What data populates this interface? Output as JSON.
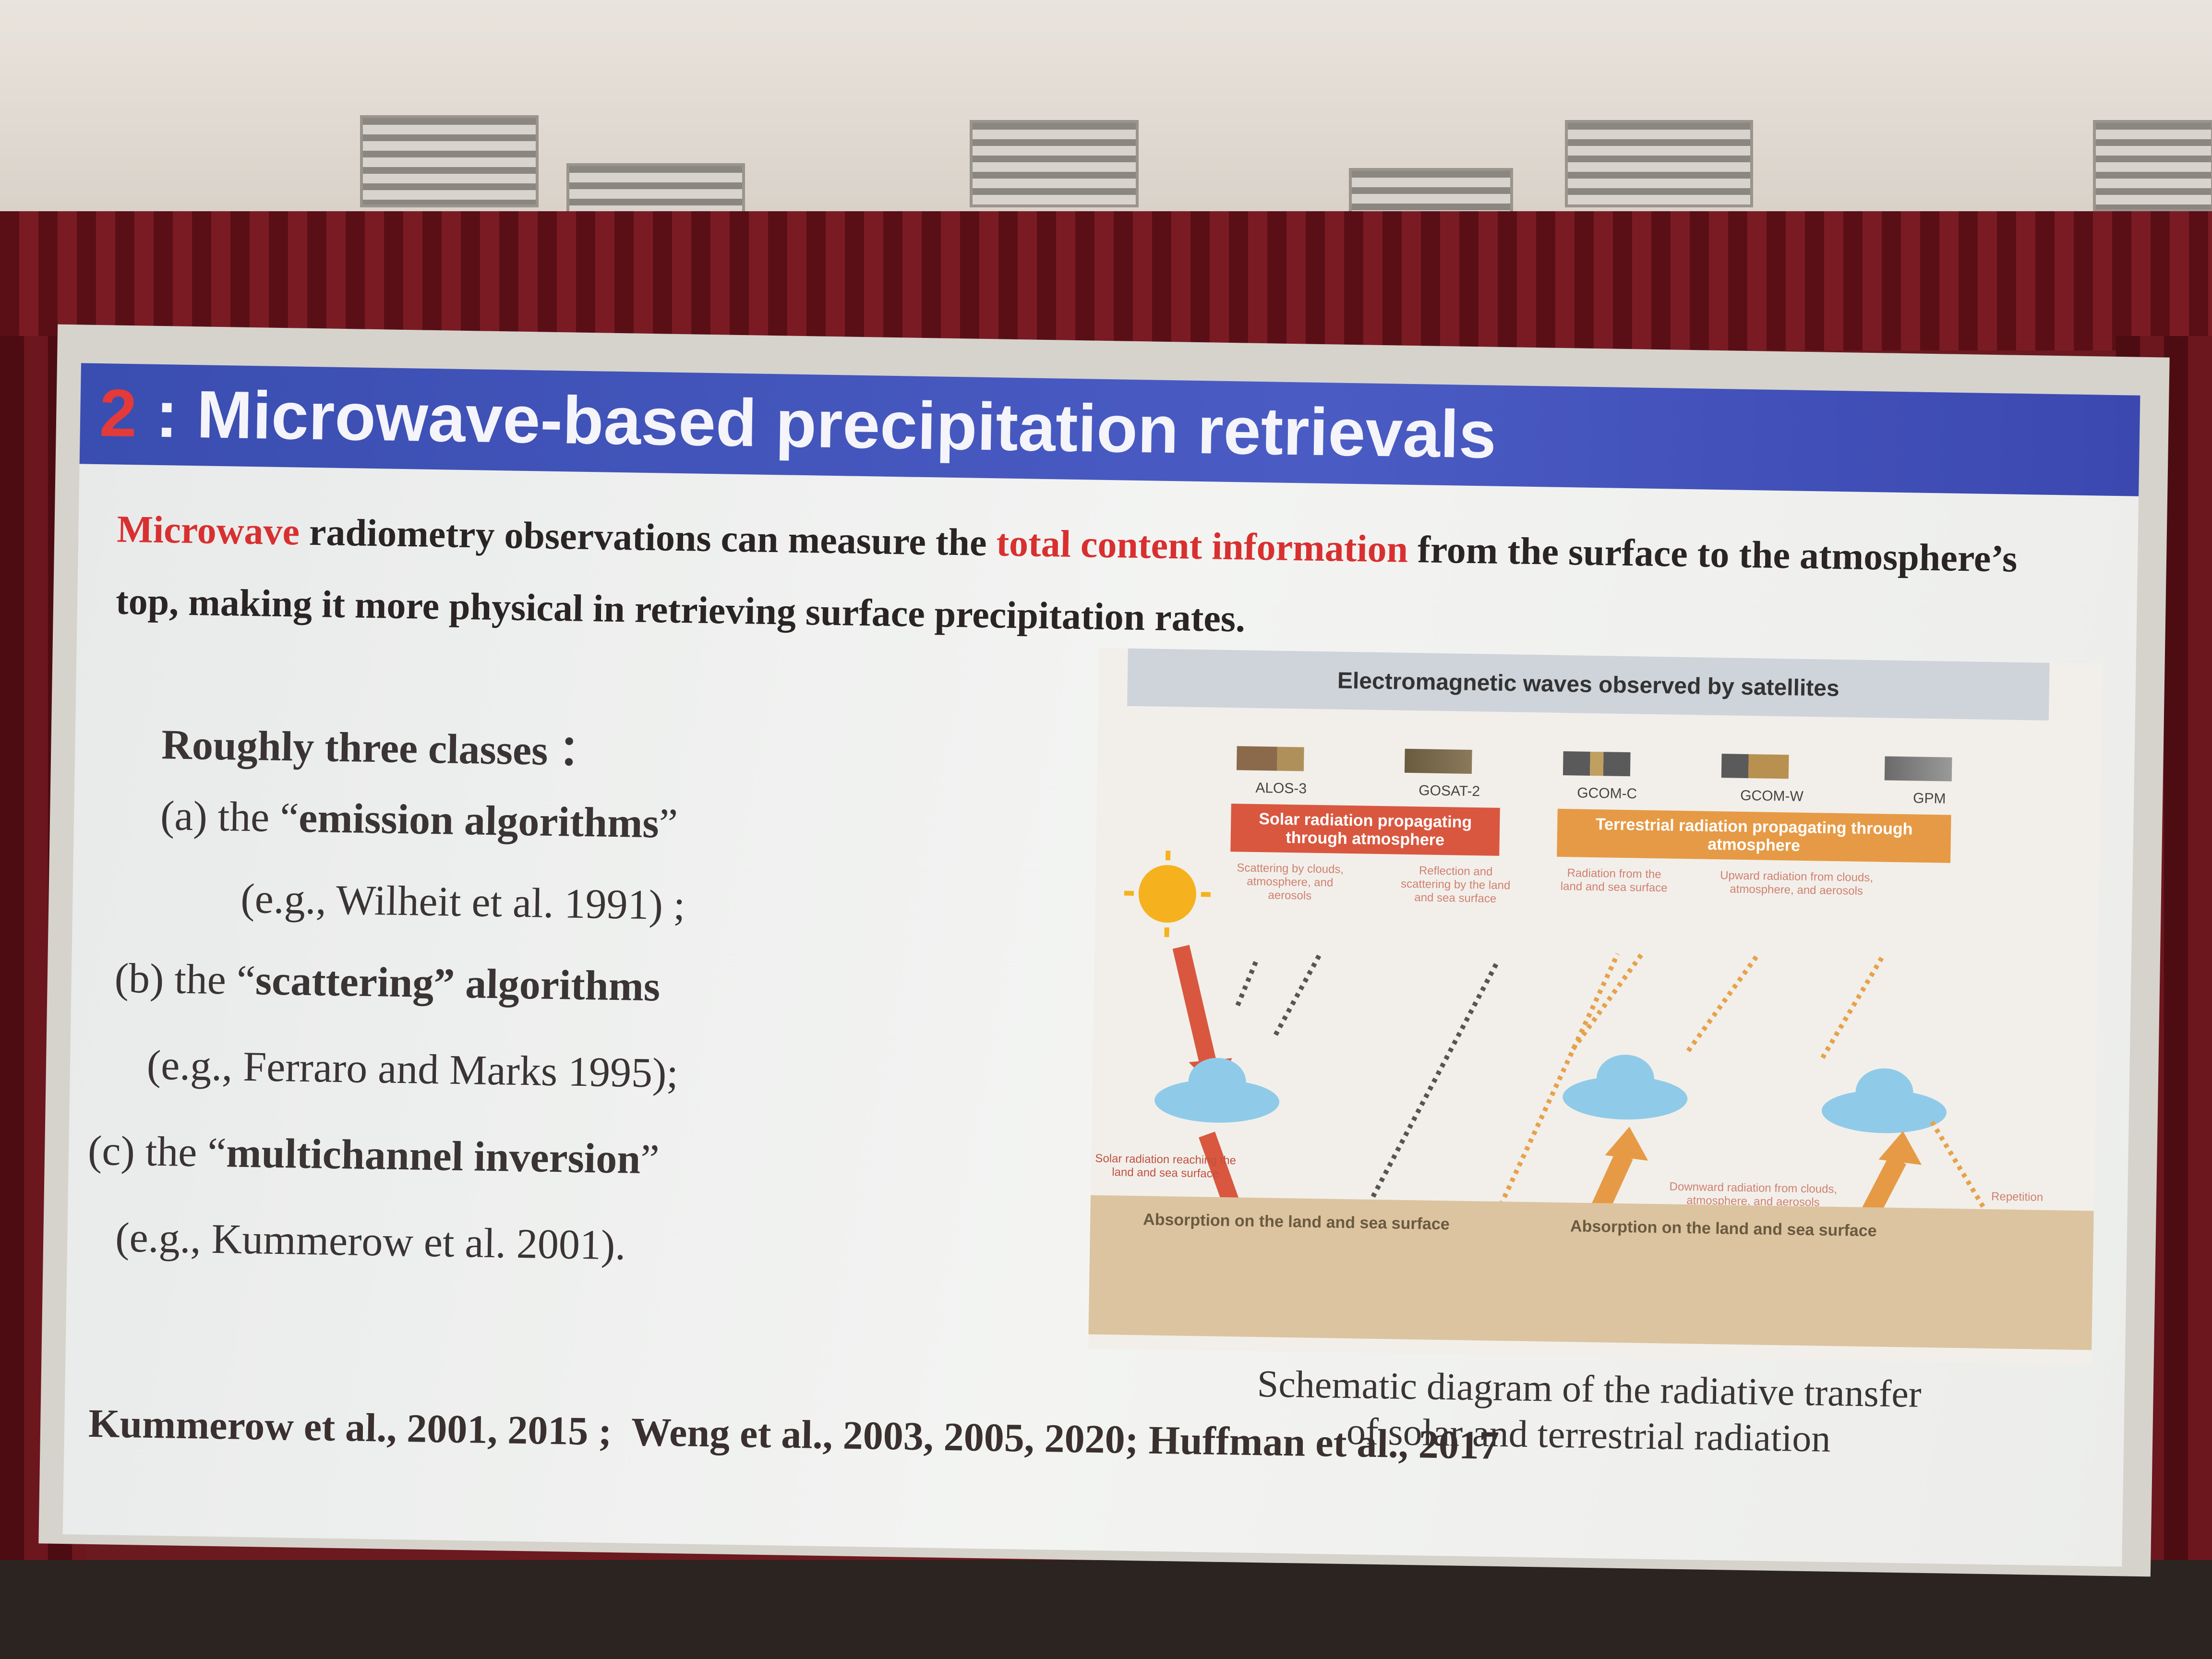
{
  "slide": {
    "title_number": "2",
    "title_text": " : Microwave-based precipitation retrievals",
    "intro": {
      "part1": "Microwave",
      "part2": " radiometry observations can measure the ",
      "part3": "total content information",
      "part4": " from the surface to the atmosphere’s top, making it more physical in retrieving surface precipitation rates."
    },
    "classes_heading": "Roughly three classes ：",
    "classes": [
      {
        "prefix": "(a) the “",
        "name": "emission algorithms",
        "suffix": "”",
        "ref": "(e.g., Wilheit et al. 1991) ;"
      },
      {
        "prefix": "(b) the “",
        "name": "scattering",
        "suffix": "” algorithms",
        "ref": "(e.g., Ferraro and Marks 1995);"
      },
      {
        "prefix": "(c) the “",
        "name": "multichannel inversion",
        "suffix": "”",
        "ref": "(e.g., Kummerow et al. 2001)."
      }
    ],
    "references": "Kummerow et al., 2001, 2015 ;  Weng et al., 2003, 2005, 2020; Huffman et al., 2017",
    "diagram": {
      "heading": "Electromagnetic waves observed by satellites",
      "satellites": [
        "ALOS-3",
        "GOSAT-2",
        "GCOM-C",
        "GCOM-W",
        "GPM"
      ],
      "solar_box": "Solar radiation propagating through atmosphere",
      "terrestrial_box": "Terrestrial radiation propagating through atmosphere",
      "notes": [
        "Scattering by clouds, atmosphere, and aerosols",
        "Reflection and scattering by the land and sea surface",
        "Radiation from the land and sea surface",
        "Upward radiation from clouds, atmosphere, and aerosols"
      ],
      "solar_radiation": "Solar radiation",
      "solar_reaching": "Solar radiation reaching the land and sea surface",
      "terrestrial_radiation": "Terrestrial radiation",
      "downward": "Downward radiation from clouds, atmosphere, and aerosols",
      "repetition": "Repetition",
      "absorption_left": "Absorption on the land and sea surface",
      "absorption_right": "Absorption on the land and sea surface",
      "caption_line1": "Schematic diagram of the radiative transfer",
      "caption_line2": "of solar and terrestrial radiation"
    },
    "colors": {
      "title_bar": "#4a5cc4",
      "accent_red": "#d83030",
      "solar_box": "#d9573f",
      "terrestrial_box": "#e69a45",
      "absorption": "#dcc4a0"
    }
  }
}
